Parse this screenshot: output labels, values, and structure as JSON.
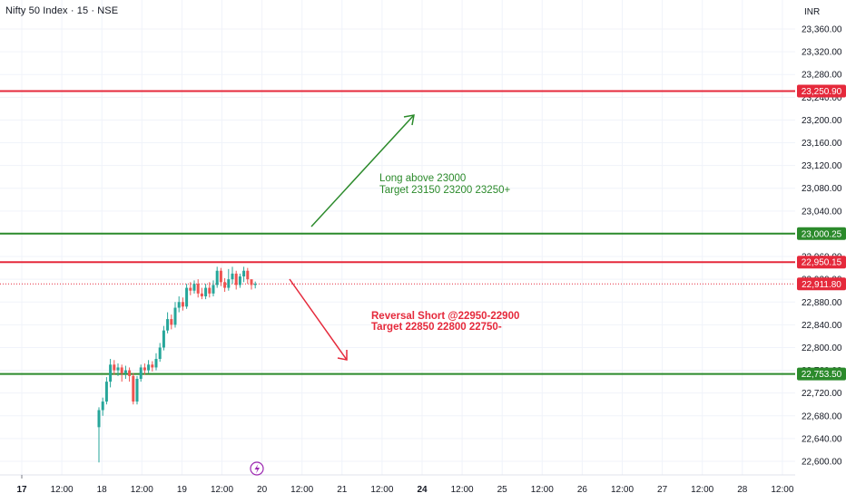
{
  "header": {
    "title": "Nifty 50 Index · 15 · NSE",
    "currency": "INR"
  },
  "colors": {
    "red": "#e5293b",
    "green": "#2b8a2b",
    "candle_up": "#26a69a",
    "candle_down": "#ef5350",
    "grid": "#f0f3fa",
    "text": "#131722"
  },
  "chart_data": {
    "type": "candlestick",
    "ylim": [
      22580,
      23390
    ],
    "y_ticks": [
      22600,
      22640,
      22680,
      22720,
      22760,
      22800,
      22840,
      22880,
      22920,
      22960,
      23000,
      23040,
      23080,
      23120,
      23160,
      23200,
      23240,
      23280,
      23320,
      23360
    ],
    "y_tick_labels": [
      "22,600.00",
      "22,640.00",
      "22,680.00",
      "22,720.00",
      "22,760.00",
      "22,800.00",
      "22,840.00",
      "22,880.00",
      "22,920.00",
      "22,960.00",
      "23,000.00",
      "23,040.00",
      "23,080.00",
      "23,120.00",
      "23,160.00",
      "23,200.00",
      "23,240.00",
      "23,280.00",
      "23,320.00",
      "23,360.00"
    ],
    "x_ticks": [
      {
        "label": "17",
        "bold": true
      },
      {
        "label": "12:00",
        "bold": false
      },
      {
        "label": "18",
        "bold": false
      },
      {
        "label": "12:00",
        "bold": false
      },
      {
        "label": "19",
        "bold": false
      },
      {
        "label": "12:00",
        "bold": false
      },
      {
        "label": "20",
        "bold": false
      },
      {
        "label": "12:00",
        "bold": false
      },
      {
        "label": "21",
        "bold": false
      },
      {
        "label": "12:00",
        "bold": false
      },
      {
        "label": "24",
        "bold": true
      },
      {
        "label": "12:00",
        "bold": false
      },
      {
        "label": "25",
        "bold": false
      },
      {
        "label": "12:00",
        "bold": false
      },
      {
        "label": "26",
        "bold": false
      },
      {
        "label": "12:00",
        "bold": false
      },
      {
        "label": "27",
        "bold": false
      },
      {
        "label": "12:00",
        "bold": false
      },
      {
        "label": "28",
        "bold": false
      },
      {
        "label": "12:00",
        "bold": false
      }
    ],
    "levels": [
      {
        "value": 23250.9,
        "label": "23,250.90",
        "color": "#e5293b",
        "style": "solid"
      },
      {
        "value": 23000.25,
        "label": "23,000.25",
        "color": "#2b8a2b",
        "style": "solid"
      },
      {
        "value": 22950.15,
        "label": "22,950.15",
        "color": "#e5293b",
        "style": "solid"
      },
      {
        "value": 22911.8,
        "label": "22,911.80",
        "color": "#e5293b",
        "style": "dotted"
      },
      {
        "value": 22753.5,
        "label": "22,753.50",
        "color": "#2b8a2b",
        "style": "solid"
      }
    ],
    "annotations": [
      {
        "lines": [
          "Long above 23000",
          "Target 23150 23200 23250+"
        ],
        "color": "#2b8a2b"
      },
      {
        "lines": [
          "Reversal Short @22950-22900",
          "Target 22850 22800 22750-"
        ],
        "color": "#e5293b"
      }
    ],
    "candles": [
      [
        22660,
        22690,
        22598,
        22695
      ],
      [
        22690,
        22705,
        22680,
        22712
      ],
      [
        22705,
        22740,
        22700,
        22748
      ],
      [
        22740,
        22770,
        22730,
        22780
      ],
      [
        22770,
        22760,
        22752,
        22778
      ],
      [
        22760,
        22765,
        22750,
        22772
      ],
      [
        22765,
        22755,
        22740,
        22770
      ],
      [
        22755,
        22760,
        22745,
        22768
      ],
      [
        22760,
        22750,
        22740,
        22765
      ],
      [
        22750,
        22705,
        22700,
        22755
      ],
      [
        22705,
        22745,
        22700,
        22750
      ],
      [
        22745,
        22765,
        22740,
        22770
      ],
      [
        22765,
        22760,
        22752,
        22772
      ],
      [
        22760,
        22770,
        22755,
        22778
      ],
      [
        22770,
        22765,
        22758,
        22776
      ],
      [
        22765,
        22780,
        22760,
        22790
      ],
      [
        22780,
        22800,
        22775,
        22808
      ],
      [
        22800,
        22830,
        22795,
        22838
      ],
      [
        22830,
        22850,
        22825,
        22862
      ],
      [
        22850,
        22840,
        22832,
        22858
      ],
      [
        22840,
        22870,
        22835,
        22880
      ],
      [
        22870,
        22880,
        22862,
        22890
      ],
      [
        22880,
        22872,
        22865,
        22888
      ],
      [
        22872,
        22905,
        22868,
        22912
      ],
      [
        22905,
        22900,
        22892,
        22915
      ],
      [
        22900,
        22912,
        22895,
        22918
      ],
      [
        22912,
        22895,
        22888,
        22920
      ],
      [
        22895,
        22890,
        22885,
        22905
      ],
      [
        22890,
        22905,
        22885,
        22912
      ],
      [
        22905,
        22895,
        22888,
        22915
      ],
      [
        22895,
        22910,
        22890,
        22918
      ],
      [
        22910,
        22935,
        22905,
        22942
      ],
      [
        22935,
        22915,
        22908,
        22940
      ],
      [
        22915,
        22905,
        22898,
        22922
      ],
      [
        22905,
        22920,
        22900,
        22938
      ],
      [
        22920,
        22930,
        22912,
        22942
      ],
      [
        22930,
        22910,
        22902,
        22935
      ],
      [
        22910,
        22925,
        22905,
        22930
      ],
      [
        22925,
        22935,
        22915,
        22942
      ],
      [
        22935,
        22920,
        22912,
        22940
      ],
      [
        22920,
        22910,
        22902,
        22918
      ],
      [
        22910,
        22912,
        22904,
        22916
      ]
    ]
  }
}
